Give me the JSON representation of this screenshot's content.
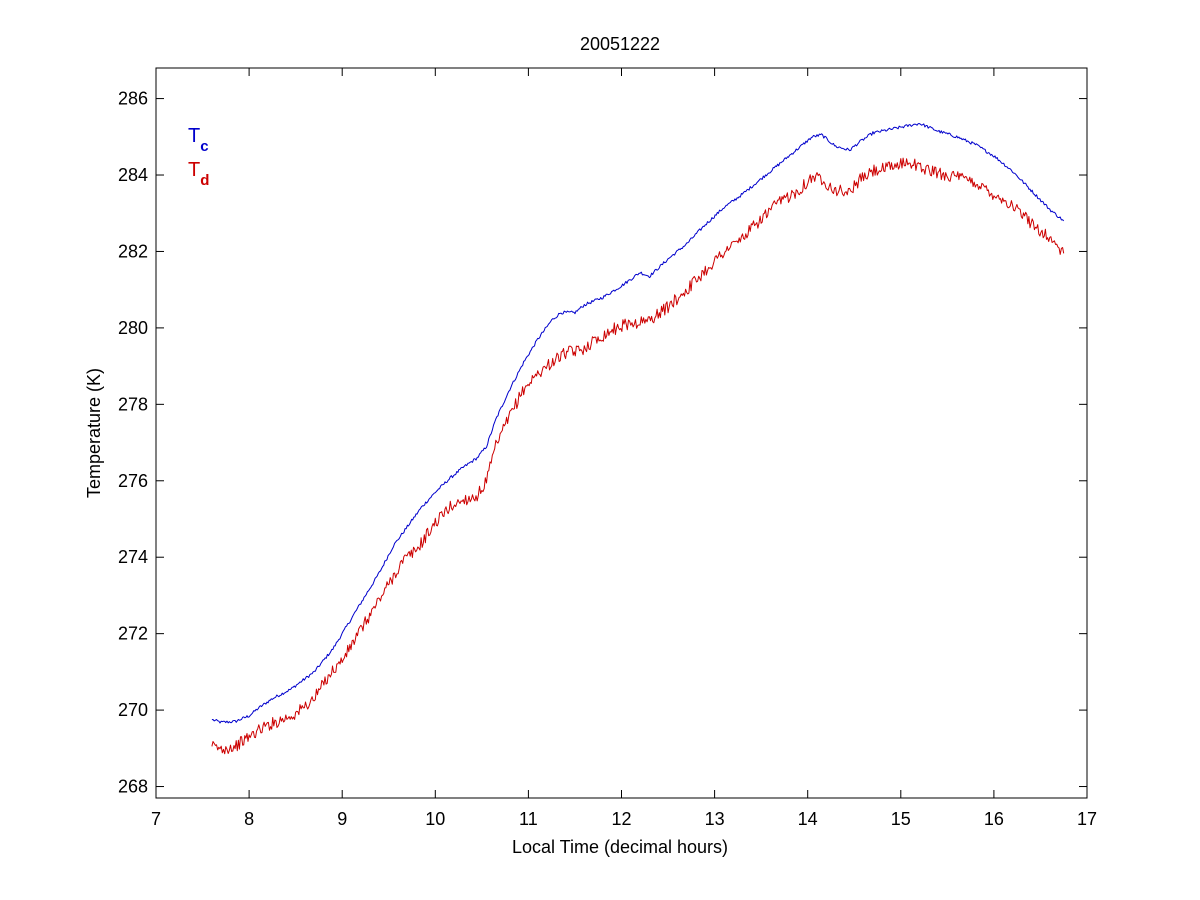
{
  "chart_data": {
    "type": "line",
    "title": "20051222",
    "xlabel": "Local Time (decimal hours)",
    "ylabel": "Temperature (K)",
    "xlim": [
      7,
      17
    ],
    "ylim": [
      267.7,
      286.8
    ],
    "xticks": [
      7,
      8,
      9,
      10,
      11,
      12,
      13,
      14,
      15,
      16,
      17
    ],
    "yticks": [
      268,
      270,
      272,
      274,
      276,
      278,
      280,
      282,
      284,
      286
    ],
    "grid": false,
    "legend_position": "top-left",
    "legend": [
      {
        "base": "T",
        "sub": "c",
        "color": "#0000cc"
      },
      {
        "base": "T",
        "sub": "d",
        "color": "#cc0000"
      }
    ],
    "series": [
      {
        "color": "#0000cc",
        "noise": 0.04,
        "x": [
          7.6,
          7.7,
          7.85,
          8.0,
          8.1,
          8.25,
          8.45,
          8.7,
          8.9,
          9.0,
          9.2,
          9.4,
          9.55,
          9.7,
          9.85,
          10.0,
          10.15,
          10.3,
          10.45,
          10.55,
          10.65,
          10.8,
          10.95,
          11.1,
          11.25,
          11.35,
          11.5,
          11.6,
          11.8,
          12.0,
          12.2,
          12.3,
          12.5,
          12.7,
          12.9,
          13.1,
          13.3,
          13.5,
          13.7,
          13.9,
          14.05,
          14.15,
          14.3,
          14.45,
          14.55,
          14.7,
          14.9,
          15.1,
          15.2,
          15.4,
          15.6,
          15.8,
          16.0,
          16.2,
          16.4,
          16.6,
          16.75
        ],
        "y": [
          269.75,
          269.68,
          269.7,
          269.85,
          270.05,
          270.3,
          270.55,
          271.0,
          271.6,
          272.0,
          272.8,
          273.6,
          274.3,
          274.8,
          275.3,
          275.7,
          276.05,
          276.35,
          276.6,
          276.9,
          277.6,
          278.4,
          279.1,
          279.7,
          280.2,
          280.4,
          280.4,
          280.6,
          280.8,
          281.1,
          281.45,
          281.35,
          281.8,
          282.2,
          282.7,
          283.15,
          283.5,
          283.9,
          284.3,
          284.7,
          285.0,
          285.05,
          284.75,
          284.65,
          284.85,
          285.1,
          285.2,
          285.3,
          285.35,
          285.15,
          285.0,
          284.8,
          284.5,
          284.1,
          283.6,
          283.1,
          282.8
        ]
      },
      {
        "color": "#cc0000",
        "noise": 0.16,
        "x": [
          7.6,
          7.7,
          7.85,
          8.0,
          8.15,
          8.3,
          8.5,
          8.7,
          8.85,
          9.0,
          9.2,
          9.4,
          9.55,
          9.65,
          9.8,
          10.0,
          10.15,
          10.3,
          10.45,
          10.55,
          10.65,
          10.8,
          10.95,
          11.1,
          11.25,
          11.4,
          11.55,
          11.7,
          11.9,
          12.05,
          12.2,
          12.3,
          12.5,
          12.7,
          12.9,
          13.1,
          13.3,
          13.5,
          13.7,
          13.9,
          14.05,
          14.15,
          14.3,
          14.45,
          14.55,
          14.7,
          14.9,
          15.0,
          15.1,
          15.2,
          15.4,
          15.6,
          15.8,
          16.0,
          16.2,
          16.4,
          16.6,
          16.75
        ],
        "y": [
          269.05,
          268.98,
          269.05,
          269.3,
          269.55,
          269.7,
          269.9,
          270.3,
          270.9,
          271.3,
          272.1,
          272.9,
          273.5,
          273.9,
          274.2,
          274.9,
          275.3,
          275.5,
          275.6,
          276.0,
          276.9,
          277.7,
          278.4,
          278.8,
          279.1,
          279.35,
          279.4,
          279.65,
          279.95,
          280.1,
          280.15,
          280.2,
          280.55,
          281.0,
          281.5,
          282.0,
          282.35,
          282.85,
          283.3,
          283.6,
          283.95,
          283.9,
          283.6,
          283.55,
          283.85,
          284.1,
          284.2,
          284.3,
          284.35,
          284.2,
          284.05,
          283.95,
          283.8,
          283.5,
          283.2,
          282.75,
          282.35,
          281.95
        ]
      }
    ]
  }
}
